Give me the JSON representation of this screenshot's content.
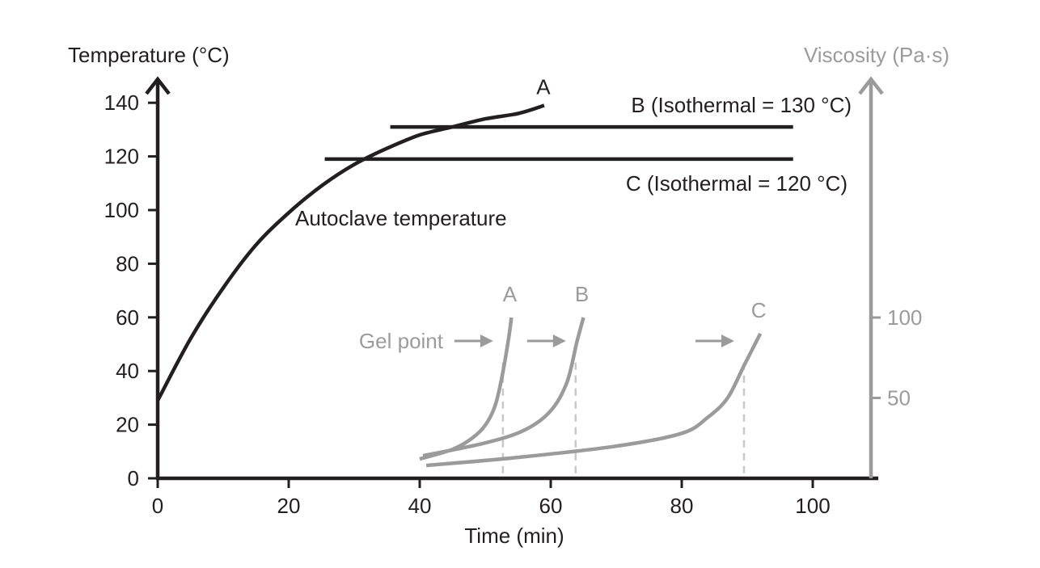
{
  "chart_data": {
    "type": "line",
    "title": "",
    "xlabel": "Time (min)",
    "ylabel": "Temperature (°C)",
    "y2label": "Viscosity (Pa·s)",
    "xlim": [
      0,
      110
    ],
    "ylim": [
      0,
      145
    ],
    "y2lim": [
      0,
      125
    ],
    "x_ticks": [
      0,
      20,
      40,
      60,
      80,
      100
    ],
    "y_ticks": [
      0,
      20,
      40,
      60,
      80,
      100,
      120,
      140
    ],
    "y2_ticks": [
      50,
      100
    ],
    "grid": false,
    "colors": {
      "temperature": "#231f20",
      "viscosity": "#9b9b9b",
      "gel_marker": "#c8c8c8"
    },
    "temperature_series": [
      {
        "name": "A",
        "label": "A",
        "annotation": "Autoclave temperature",
        "x": [
          0,
          5,
          10,
          15,
          20,
          25,
          30,
          35,
          40,
          45,
          50,
          55,
          59
        ],
        "y": [
          29,
          52,
          71,
          87,
          99,
          109,
          117,
          123,
          128,
          131,
          134,
          136,
          139
        ]
      },
      {
        "name": "B",
        "label": "B (Isothermal = 130 °C)",
        "x": [
          35.5,
          97
        ],
        "y": [
          131,
          131
        ]
      },
      {
        "name": "C",
        "label": "C (Isothermal = 120 °C)",
        "x": [
          25.5,
          97
        ],
        "y": [
          119,
          119
        ]
      }
    ],
    "viscosity_series": [
      {
        "name": "A",
        "label": "A",
        "x": [
          40,
          45,
          48,
          50,
          51.5,
          52.5,
          53.5,
          54
        ],
        "y": [
          12,
          18,
          25,
          33,
          45,
          62,
          85,
          100
        ]
      },
      {
        "name": "B",
        "label": "B",
        "x": [
          40.5,
          50,
          56,
          60,
          62.5,
          64,
          65
        ],
        "y": [
          14,
          22,
          30,
          42,
          60,
          85,
          100
        ]
      },
      {
        "name": "C",
        "label": "C",
        "x": [
          41,
          55,
          70,
          80,
          84,
          87,
          89.5,
          92
        ],
        "y": [
          8,
          13,
          20,
          28,
          38,
          50,
          70,
          90
        ]
      }
    ],
    "gel_point": {
      "label": "Gel point",
      "times": [
        52.7,
        63.8,
        89.5
      ],
      "viscosity": [
        72,
        72,
        72
      ]
    }
  }
}
